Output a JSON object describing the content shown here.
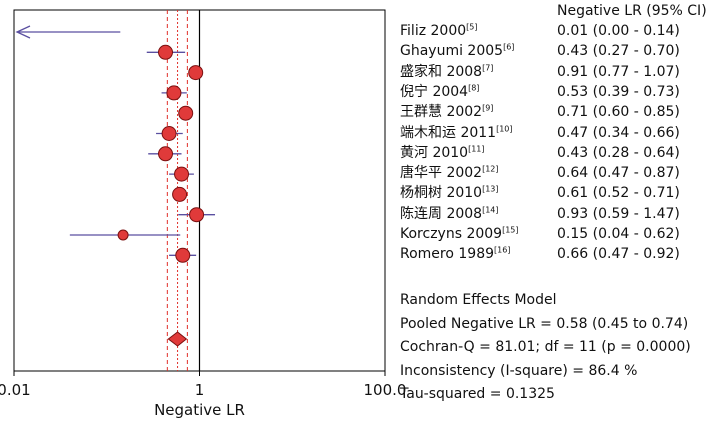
{
  "chart_data": {
    "type": "forest",
    "x_scale": "log",
    "xlim": [
      0.01,
      100
    ],
    "xlabel": "Negative LR",
    "x_tick_labels": [
      "0.01",
      "1",
      "100.0"
    ],
    "x_ticks": [
      0.01,
      1,
      100
    ],
    "reference_line": 1,
    "header": "Negative LR (95% CI)",
    "studies": [
      {
        "name": "Filiz 2000",
        "ref": "[5]",
        "value": 0.01,
        "lower": 0.0,
        "upper": 0.14,
        "ci_text": "0.01 (0.00 - 0.14)"
      },
      {
        "name": "Ghayumi 2005",
        "ref": "[6]",
        "value": 0.43,
        "lower": 0.27,
        "upper": 0.7,
        "ci_text": "0.43 (0.27 - 0.70)"
      },
      {
        "name": "盛家和 2008",
        "ref": "[7]",
        "value": 0.91,
        "lower": 0.77,
        "upper": 1.07,
        "ci_text": "0.91 (0.77 - 1.07)"
      },
      {
        "name": "倪宁 2004",
        "ref": "[8]",
        "value": 0.53,
        "lower": 0.39,
        "upper": 0.73,
        "ci_text": "0.53 (0.39 - 0.73)"
      },
      {
        "name": "王群慧 2002",
        "ref": "[9]",
        "value": 0.71,
        "lower": 0.6,
        "upper": 0.85,
        "ci_text": "0.71 (0.60 - 0.85)"
      },
      {
        "name": "端木和运 2011",
        "ref": "[10]",
        "value": 0.47,
        "lower": 0.34,
        "upper": 0.66,
        "ci_text": "0.47 (0.34 - 0.66)"
      },
      {
        "name": "黄河 2010",
        "ref": "[11]",
        "value": 0.43,
        "lower": 0.28,
        "upper": 0.64,
        "ci_text": "0.43 (0.28 - 0.64)"
      },
      {
        "name": "唐华平 2002",
        "ref": "[12]",
        "value": 0.64,
        "lower": 0.47,
        "upper": 0.87,
        "ci_text": "0.64 (0.47 - 0.87)"
      },
      {
        "name": "杨桐树 2010",
        "ref": "[13]",
        "value": 0.61,
        "lower": 0.52,
        "upper": 0.71,
        "ci_text": "0.61 (0.52 - 0.71)"
      },
      {
        "name": "陈连周 2008",
        "ref": "[14]",
        "value": 0.93,
        "lower": 0.59,
        "upper": 1.47,
        "ci_text": "0.93 (0.59 - 1.47)"
      },
      {
        "name": "Korczyns 2009",
        "ref": "[15]",
        "value": 0.15,
        "lower": 0.04,
        "upper": 0.62,
        "ci_text": "0.15 (0.04 - 0.62)"
      },
      {
        "name": "Romero 1989",
        "ref": "[16]",
        "value": 0.66,
        "lower": 0.47,
        "upper": 0.92,
        "ci_text": "0.66 (0.47 - 0.92)"
      }
    ],
    "pooled": {
      "value": 0.58,
      "lower": 0.45,
      "upper": 0.74
    },
    "summary_lines": [
      "Random Effects Model",
      "Pooled Negative LR = 0.58 (0.45 to 0.74)",
      "Cochran-Q = 81.01; df = 11 (p = 0.0000)",
      "Inconsistency (I-square) = 86.4 %",
      "Tau-squared = 0.1325"
    ],
    "colors": {
      "marker": "#e03a3a",
      "ci_line": "#5a4fa0",
      "pooled_band": "#e0302a",
      "axis": "#000000"
    }
  }
}
